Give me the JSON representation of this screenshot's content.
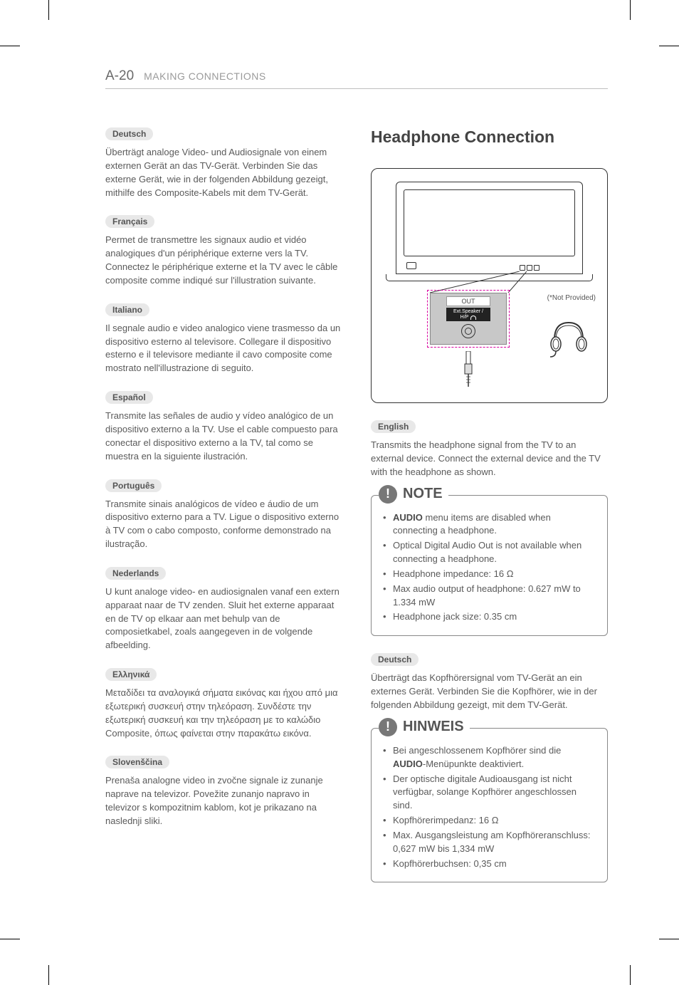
{
  "page_header": {
    "page_number": "A-20",
    "section": "MAKING CONNECTIONS"
  },
  "colors": {
    "text": "#5a5a5a",
    "border": "#888888",
    "tag_bg": "#e8e8e8",
    "dotted": "#d900a0",
    "panel_bg": "#c8c8c8",
    "icon_bg": "#777777"
  },
  "left_column": {
    "sections": [
      {
        "lang": "Deutsch",
        "text": "Überträgt analoge Video- und Audiosignale von einem externen Gerät an das TV-Gerät. Verbinden Sie das externe Gerät, wie in der folgenden Abbildung gezeigt, mithilfe des Composite-Kabels mit dem TV-Gerät."
      },
      {
        "lang": "Français",
        "text": "Permet de transmettre les signaux audio et vidéo analogiques d'un périphérique externe vers la TV. Connectez le périphérique externe et la TV avec le câble composite comme indiqué sur l'illustration suivante."
      },
      {
        "lang": "Italiano",
        "text": "Il segnale audio e video analogico viene trasmesso da un dispositivo esterno al televisore. Collegare il dispositivo esterno e il televisore mediante il cavo composite come mostrato nell'illustrazione di seguito."
      },
      {
        "lang": "Español",
        "text": "Transmite las señales de audio y vídeo analógico de un dispositivo externo a la TV. Use el cable compuesto para conectar el dispositivo externo a la TV, tal como se muestra en la siguiente ilustración."
      },
      {
        "lang": "Português",
        "text": "Transmite sinais analógicos de vídeo e áudio de um dispositivo externo para a TV. Ligue o dispositivo externo à TV com o cabo composto, conforme demonstrado na ilustração."
      },
      {
        "lang": "Nederlands",
        "text": "U kunt analoge video- en audiosignalen vanaf een extern apparaat naar de TV zenden. Sluit het externe apparaat en de TV op elkaar aan met behulp van de composietkabel, zoals aangegeven in de volgende afbeelding."
      },
      {
        "lang": "Ελληνικά",
        "text": "Μεταδίδει τα αναλογικά σήματα εικόνας και ήχου από μια εξωτερική συσκευή στην τηλεόραση. Συνδέστε την εξωτερική συσκευή και την τηλεόραση με το καλώδιο Composite, όπως φαίνεται στην παρακάτω εικόνα."
      },
      {
        "lang": "Slovenščina",
        "text": "Prenaša analogne video in zvočne signale iz zunanje naprave na televizor. Povežite zunanjo napravo in televizor s kompozitnim kablom, kot je prikazano na naslednji sliki."
      }
    ]
  },
  "right_column": {
    "heading": "Headphone Connection",
    "diagram": {
      "out_label": "OUT",
      "port_label_line1": "Ext.Speaker /",
      "port_label_line2": "H/P",
      "not_provided": "(*Not Provided)"
    },
    "english": {
      "lang": "English",
      "text": "Transmits the headphone signal from the TV to an external device. Connect the external device and the TV with the headphone as shown."
    },
    "note_en": {
      "title": "NOTE",
      "items_html": [
        "<b>AUDIO</b> menu items are disabled when connecting a headphone.",
        "Optical Digital Audio Out is not available when connecting a headphone.",
        "Headphone impedance: 16 Ω",
        "Max audio output of headphone: 0.627 mW to 1.334 mW",
        "Headphone jack size: 0.35 cm"
      ]
    },
    "deutsch": {
      "lang": "Deutsch",
      "text": "Überträgt das Kopfhörersignal vom TV-Gerät an ein externes Gerät. Verbinden Sie die Kopfhörer, wie in der folgenden Abbildung gezeigt, mit dem TV-Gerät."
    },
    "note_de": {
      "title": "HINWEIS",
      "items_html": [
        "Bei angeschlossenem Kopfhörer sind die <b>AUDIO</b>-Menüpunkte deaktiviert.",
        "Der optische digitale Audioausgang ist nicht verfügbar, solange Kopfhörer angeschlossen sind.",
        "Kopfhörerimpedanz: 16 Ω",
        "Max. Ausgangsleistung am Kopfhöreranschluss: 0,627 mW bis 1,334 mW",
        "Kopfhörerbuchsen: 0,35 cm"
      ]
    }
  }
}
